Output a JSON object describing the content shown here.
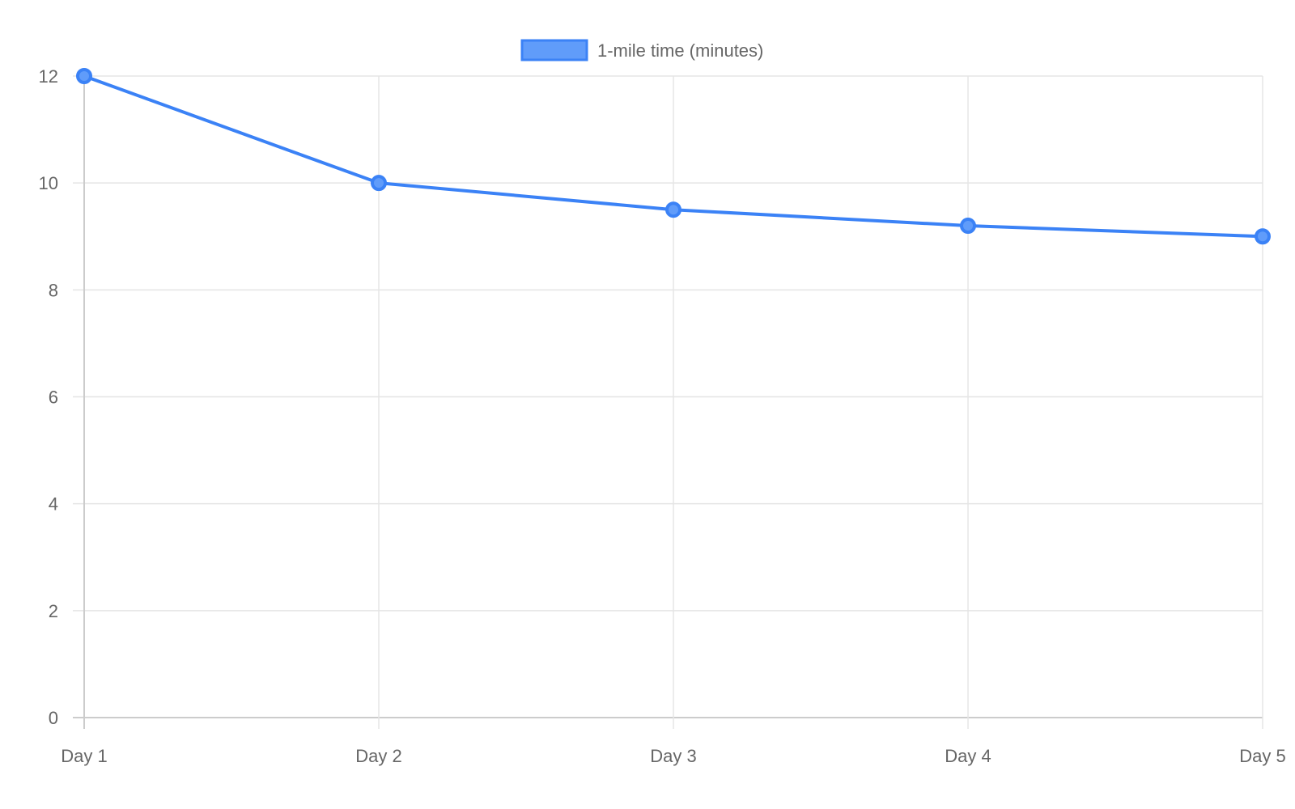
{
  "chart_data": {
    "type": "line",
    "categories": [
      "Day 1",
      "Day 2",
      "Day 3",
      "Day 4",
      "Day 5"
    ],
    "series": [
      {
        "name": "1-mile time (minutes)",
        "values": [
          12,
          10,
          9.5,
          9.2,
          9
        ],
        "color": "#3b82f6",
        "fill_color": "#609cfa"
      }
    ],
    "y_ticks": [
      0,
      2,
      4,
      6,
      8,
      10,
      12
    ],
    "ylim": [
      0,
      12
    ],
    "grid": true,
    "legend_position": "top-center",
    "title": "",
    "xlabel": "",
    "ylabel": ""
  }
}
